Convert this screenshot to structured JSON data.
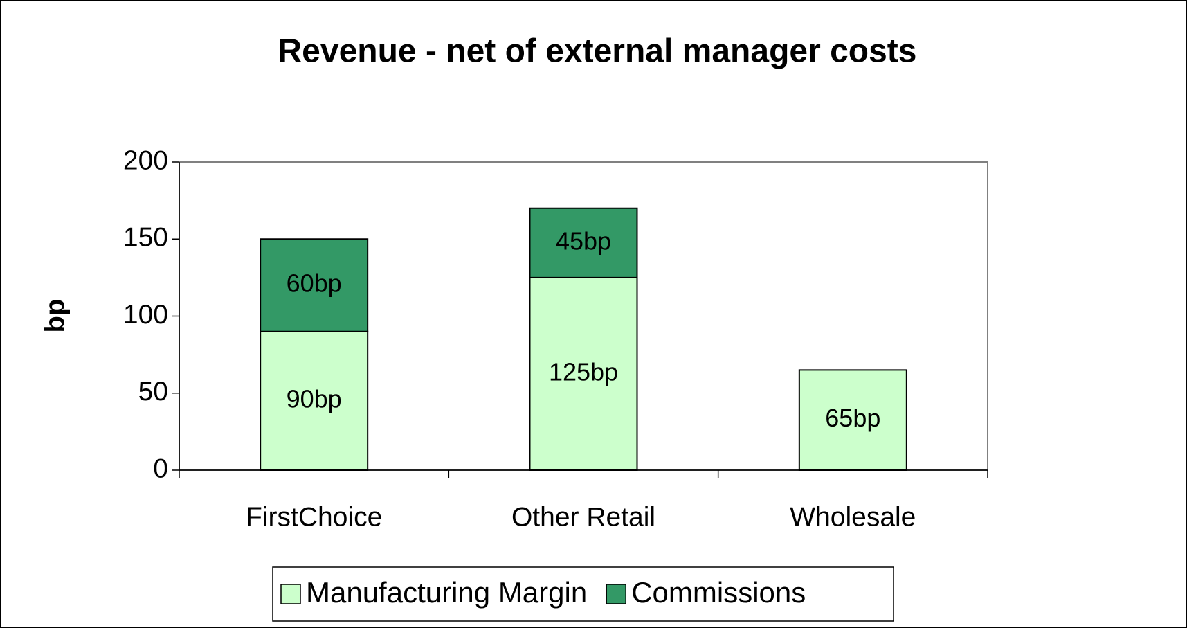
{
  "chart_data": {
    "type": "stacked_bar",
    "title": "Revenue - net of external manager costs",
    "y_label": "bp",
    "categories": [
      "FirstChoice",
      "Other Retail",
      "Wholesale"
    ],
    "series": [
      {
        "name": "Manufacturing Margin",
        "color": "#ccffcc",
        "values": [
          90,
          125,
          65
        ],
        "value_labels": [
          "90bp",
          "125bp",
          "65bp"
        ]
      },
      {
        "name": "Commissions",
        "color": "#339966",
        "values": [
          60,
          45,
          null
        ],
        "value_labels": [
          "60bp",
          "45bp",
          null
        ]
      }
    ],
    "ylim": [
      0,
      200
    ],
    "yticks": [
      0,
      50,
      100,
      150,
      200
    ],
    "grid": false
  }
}
